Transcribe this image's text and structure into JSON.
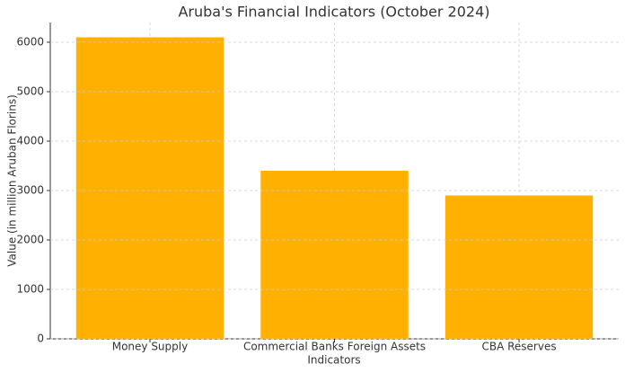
{
  "chart_data": {
    "type": "bar",
    "title": "Aruba's Financial Indicators (October 2024)",
    "x_label": "Indicators",
    "y_label": "Value (in million Aruban Florins)",
    "categories": [
      "Money Supply",
      "Commercial Banks Foreign Assets",
      "CBA Reserves"
    ],
    "values": [
      6100,
      3400,
      2900
    ],
    "color": "#ffb000",
    "ylim": [
      0,
      6400
    ],
    "yticks": [
      0,
      1000,
      2000,
      3000,
      4000,
      5000,
      6000
    ],
    "grid": true
  }
}
